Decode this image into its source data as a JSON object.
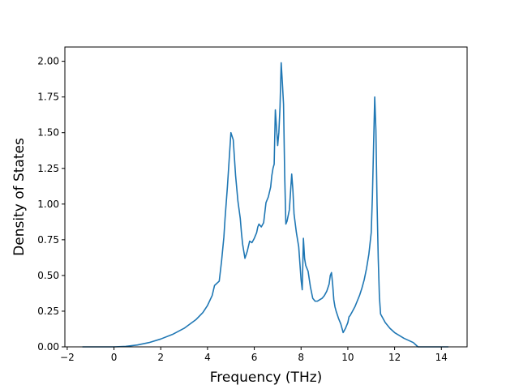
{
  "chart_data": {
    "type": "line",
    "title": "",
    "xlabel": "Frequency (THz)",
    "ylabel": "Density of States",
    "xlim": [
      -2.1,
      15.1
    ],
    "ylim": [
      0,
      2.1
    ],
    "x_ticks": [
      -2,
      0,
      2,
      4,
      6,
      8,
      10,
      12,
      14
    ],
    "x_tick_labels": [
      "−2",
      "0",
      "2",
      "4",
      "6",
      "8",
      "10",
      "12",
      "14"
    ],
    "y_ticks": [
      0,
      0.25,
      0.5,
      0.75,
      1.0,
      1.25,
      1.5,
      1.75,
      2.0
    ],
    "y_tick_labels": [
      "0.00",
      "0.25",
      "0.50",
      "0.75",
      "1.00",
      "1.25",
      "1.50",
      "1.75",
      "2.00"
    ],
    "grid": false,
    "series": [
      {
        "color": "#1f77b4",
        "x": [
          -1.35,
          -1.0,
          -0.5,
          0.0,
          0.5,
          1.0,
          1.5,
          2.0,
          2.5,
          3.0,
          3.5,
          3.8,
          4.0,
          4.2,
          4.3,
          4.5,
          4.6,
          4.7,
          4.75,
          4.85,
          5.0,
          5.1,
          5.2,
          5.3,
          5.4,
          5.45,
          5.5,
          5.6,
          5.7,
          5.8,
          5.9,
          6.0,
          6.05,
          6.1,
          6.15,
          6.2,
          6.3,
          6.4,
          6.5,
          6.6,
          6.7,
          6.75,
          6.8,
          6.85,
          6.9,
          7.0,
          7.05,
          7.1,
          7.15,
          7.2,
          7.25,
          7.3,
          7.35,
          7.4,
          7.5,
          7.6,
          7.65,
          7.7,
          7.8,
          7.9,
          8.0,
          8.05,
          8.1,
          8.15,
          8.2,
          8.3,
          8.4,
          8.5,
          8.6,
          8.7,
          8.8,
          8.9,
          9.0,
          9.1,
          9.2,
          9.25,
          9.3,
          9.35,
          9.4,
          9.45,
          9.5,
          9.6,
          9.7,
          9.8,
          9.9,
          10.0,
          10.05,
          10.1,
          10.2,
          10.3,
          10.4,
          10.5,
          10.6,
          10.7,
          10.8,
          10.9,
          11.0,
          11.05,
          11.1,
          11.15,
          11.2,
          11.25,
          11.3,
          11.35,
          11.4,
          11.5,
          11.6,
          11.8,
          12.0,
          12.2,
          12.4,
          12.6,
          12.8,
          12.9,
          13.0,
          13.1,
          13.5,
          14.0,
          14.3
        ],
        "y": [
          0.0,
          0.0,
          0.0,
          0.0,
          0.003,
          0.013,
          0.03,
          0.055,
          0.087,
          0.13,
          0.19,
          0.24,
          0.29,
          0.36,
          0.43,
          0.46,
          0.6,
          0.77,
          0.9,
          1.12,
          1.5,
          1.45,
          1.2,
          1.02,
          0.9,
          0.8,
          0.72,
          0.62,
          0.67,
          0.74,
          0.73,
          0.76,
          0.78,
          0.8,
          0.84,
          0.86,
          0.84,
          0.87,
          1.01,
          1.05,
          1.12,
          1.2,
          1.25,
          1.28,
          1.66,
          1.41,
          1.5,
          1.68,
          1.99,
          1.85,
          1.7,
          1.2,
          0.86,
          0.88,
          0.96,
          1.21,
          1.1,
          0.93,
          0.8,
          0.7,
          0.47,
          0.4,
          0.76,
          0.62,
          0.57,
          0.53,
          0.42,
          0.34,
          0.32,
          0.32,
          0.33,
          0.34,
          0.36,
          0.39,
          0.44,
          0.5,
          0.52,
          0.44,
          0.33,
          0.28,
          0.25,
          0.2,
          0.16,
          0.1,
          0.13,
          0.17,
          0.21,
          0.22,
          0.25,
          0.28,
          0.32,
          0.36,
          0.41,
          0.47,
          0.55,
          0.65,
          0.8,
          1.05,
          1.4,
          1.75,
          1.52,
          1.0,
          0.62,
          0.35,
          0.23,
          0.2,
          0.17,
          0.13,
          0.1,
          0.08,
          0.06,
          0.045,
          0.03,
          0.015,
          0.0,
          0.0,
          0.0,
          0.0,
          0.0
        ]
      }
    ]
  }
}
